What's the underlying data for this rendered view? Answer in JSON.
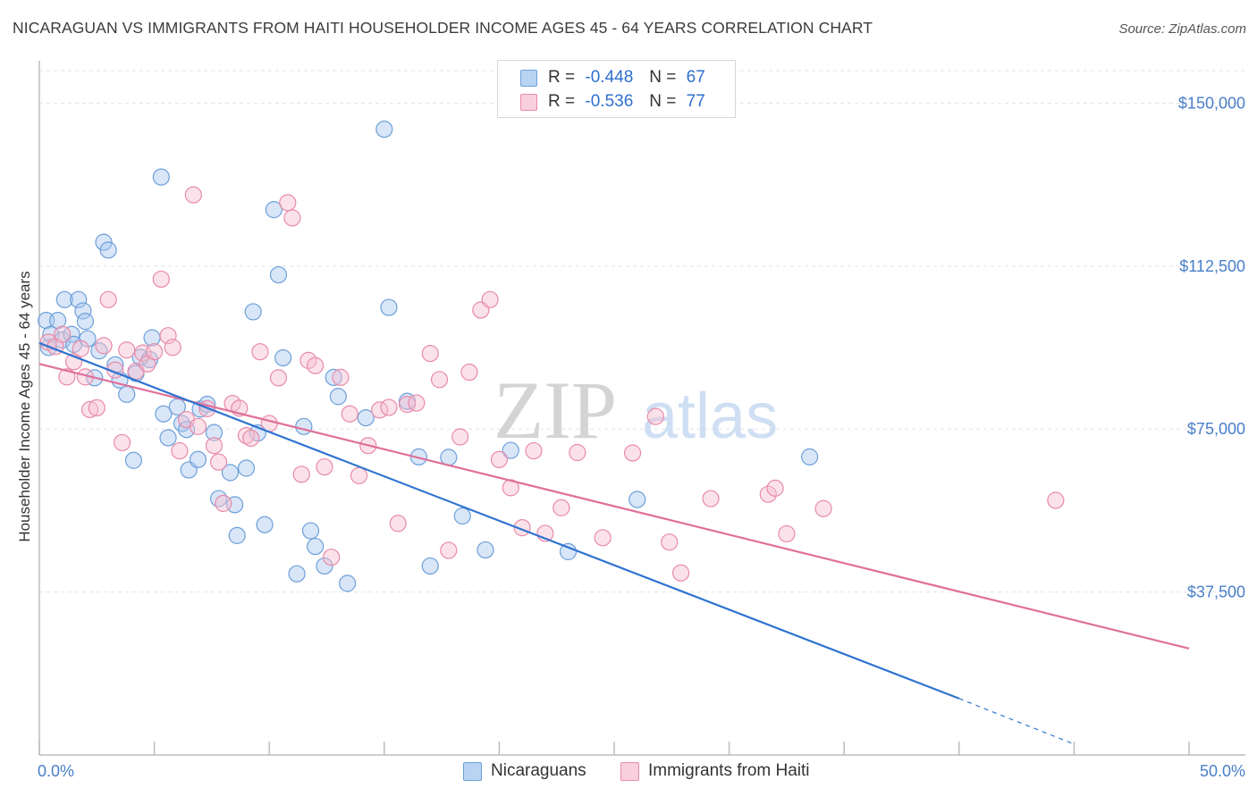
{
  "header": {
    "title": "NICARAGUAN VS IMMIGRANTS FROM HAITI HOUSEHOLDER INCOME AGES 45 - 64 YEARS CORRELATION CHART",
    "source": "Source: ZipAtlas.com"
  },
  "legend_box": {
    "rows": [
      {
        "r_label": "R =",
        "r_value": "-0.448",
        "n_label": "N =",
        "n_value": "67"
      },
      {
        "r_label": "R =",
        "r_value": "-0.536",
        "n_label": "N =",
        "n_value": "77"
      }
    ]
  },
  "watermark": {
    "part1": "ZIP",
    "part2": "atlas"
  },
  "colors": {
    "blue_fill": "#a8c8ef",
    "blue_stroke": "#6d9fd9",
    "blue_line": "#2f74d0",
    "pink_fill": "#f6bfd0",
    "pink_stroke": "#e88aa9",
    "pink_line": "#e0709a",
    "grid": "#e3e3e3",
    "tick_text": "#4a7fc9"
  },
  "chart_data": {
    "type": "scatter",
    "title": "NICARAGUAN VS IMMIGRANTS FROM HAITI HOUSEHOLDER INCOME AGES 45 - 64 YEARS CORRELATION CHART",
    "xlabel": "",
    "ylabel": "Householder Income Ages 45 - 64 years",
    "xlim": [
      0,
      50
    ],
    "ylim": [
      0,
      157500
    ],
    "x_tick_labels": [
      "0.0%",
      "50.0%"
    ],
    "y_ticks": [
      37500,
      75000,
      112500,
      150000
    ],
    "y_tick_labels": [
      "$37,500",
      "$75,000",
      "$112,500",
      "$150,000"
    ],
    "grid": true,
    "legend_position": "bottom",
    "series": [
      {
        "name": "Nicaraguans",
        "color": "#6d9fd9",
        "r": -0.448,
        "n": 67,
        "trend": {
          "x0": 0,
          "y0": 94800,
          "x1": 40,
          "y1": 13000,
          "dashed_to_x": 45,
          "dashed_to_y": 2500
        },
        "points": [
          [
            0.3,
            100000
          ],
          [
            0.5,
            96800
          ],
          [
            0.4,
            93800
          ],
          [
            0.8,
            100000
          ],
          [
            1.0,
            95500
          ],
          [
            1.1,
            104800
          ],
          [
            1.4,
            96800
          ],
          [
            1.5,
            94500
          ],
          [
            1.7,
            104800
          ],
          [
            1.9,
            102200
          ],
          [
            2.0,
            99800
          ],
          [
            2.1,
            95800
          ],
          [
            2.6,
            93000
          ],
          [
            2.4,
            86800
          ],
          [
            2.8,
            118000
          ],
          [
            3.0,
            116200
          ],
          [
            3.3,
            89800
          ],
          [
            3.5,
            86300
          ],
          [
            3.8,
            83000
          ],
          [
            4.1,
            67800
          ],
          [
            4.2,
            87800
          ],
          [
            4.4,
            91500
          ],
          [
            4.8,
            91000
          ],
          [
            4.9,
            96000
          ],
          [
            5.3,
            133000
          ],
          [
            5.4,
            78500
          ],
          [
            5.6,
            73000
          ],
          [
            6.0,
            80100
          ],
          [
            6.2,
            76300
          ],
          [
            6.4,
            74900
          ],
          [
            6.5,
            65600
          ],
          [
            6.9,
            68000
          ],
          [
            7.0,
            79600
          ],
          [
            7.3,
            80700
          ],
          [
            7.6,
            74200
          ],
          [
            7.8,
            59000
          ],
          [
            8.3,
            65000
          ],
          [
            8.5,
            57600
          ],
          [
            8.6,
            50500
          ],
          [
            9.0,
            66000
          ],
          [
            9.3,
            102000
          ],
          [
            9.5,
            74100
          ],
          [
            9.8,
            53000
          ],
          [
            10.2,
            125500
          ],
          [
            10.4,
            110500
          ],
          [
            10.6,
            91400
          ],
          [
            11.2,
            41700
          ],
          [
            11.5,
            75600
          ],
          [
            11.8,
            51600
          ],
          [
            12.0,
            48000
          ],
          [
            12.4,
            43500
          ],
          [
            12.8,
            86900
          ],
          [
            13.0,
            82500
          ],
          [
            13.4,
            39500
          ],
          [
            14.2,
            77600
          ],
          [
            15.0,
            144000
          ],
          [
            15.2,
            103000
          ],
          [
            16.0,
            81400
          ],
          [
            16.5,
            68600
          ],
          [
            17.0,
            43500
          ],
          [
            17.8,
            68500
          ],
          [
            18.4,
            55000
          ],
          [
            19.4,
            47200
          ],
          [
            20.5,
            70100
          ],
          [
            23.0,
            46800
          ],
          [
            26.0,
            58800
          ],
          [
            33.5,
            68600
          ]
        ]
      },
      {
        "name": "Immigrants from Haiti",
        "color": "#e88aa9",
        "r": -0.536,
        "n": 77,
        "trend": {
          "x0": 0,
          "y0": 90000,
          "x1": 50,
          "y1": 24500
        },
        "points": [
          [
            0.4,
            95000
          ],
          [
            0.7,
            94000
          ],
          [
            1.0,
            96800
          ],
          [
            1.2,
            87000
          ],
          [
            1.5,
            90500
          ],
          [
            1.8,
            93500
          ],
          [
            2.0,
            87000
          ],
          [
            2.2,
            79500
          ],
          [
            2.5,
            79900
          ],
          [
            2.8,
            94200
          ],
          [
            3.0,
            104800
          ],
          [
            3.3,
            88600
          ],
          [
            3.6,
            71900
          ],
          [
            3.8,
            93200
          ],
          [
            4.2,
            88300
          ],
          [
            4.5,
            92500
          ],
          [
            4.7,
            90000
          ],
          [
            5.0,
            92800
          ],
          [
            5.3,
            109500
          ],
          [
            5.6,
            96500
          ],
          [
            5.8,
            93800
          ],
          [
            6.1,
            70000
          ],
          [
            6.4,
            77200
          ],
          [
            6.7,
            128900
          ],
          [
            6.9,
            75600
          ],
          [
            7.3,
            79700
          ],
          [
            7.6,
            71200
          ],
          [
            7.8,
            67400
          ],
          [
            8.0,
            57900
          ],
          [
            8.4,
            80900
          ],
          [
            8.7,
            79800
          ],
          [
            9.0,
            73500
          ],
          [
            9.2,
            72900
          ],
          [
            9.6,
            92800
          ],
          [
            10.0,
            76300
          ],
          [
            10.4,
            86800
          ],
          [
            10.8,
            127100
          ],
          [
            11.0,
            123600
          ],
          [
            11.4,
            64600
          ],
          [
            11.7,
            90800
          ],
          [
            12.0,
            89600
          ],
          [
            12.4,
            66300
          ],
          [
            12.7,
            45500
          ],
          [
            13.1,
            86900
          ],
          [
            13.5,
            78500
          ],
          [
            13.9,
            64300
          ],
          [
            14.3,
            71200
          ],
          [
            14.8,
            79400
          ],
          [
            15.2,
            80000
          ],
          [
            15.6,
            53300
          ],
          [
            16.0,
            80700
          ],
          [
            16.4,
            81000
          ],
          [
            17.0,
            92400
          ],
          [
            17.4,
            86400
          ],
          [
            17.8,
            47100
          ],
          [
            18.3,
            73200
          ],
          [
            18.7,
            88100
          ],
          [
            19.2,
            102400
          ],
          [
            19.6,
            104800
          ],
          [
            20.0,
            68000
          ],
          [
            20.5,
            61500
          ],
          [
            21.0,
            52300
          ],
          [
            21.5,
            70000
          ],
          [
            22.0,
            51000
          ],
          [
            22.7,
            56900
          ],
          [
            23.4,
            69600
          ],
          [
            24.5,
            50000
          ],
          [
            25.8,
            69500
          ],
          [
            26.8,
            77900
          ],
          [
            27.4,
            49000
          ],
          [
            27.9,
            41900
          ],
          [
            29.2,
            59000
          ],
          [
            31.7,
            60000
          ],
          [
            32.0,
            61400
          ],
          [
            32.5,
            50900
          ],
          [
            34.1,
            56700
          ],
          [
            44.2,
            58600
          ]
        ]
      }
    ]
  },
  "bottom_legend": {
    "items": [
      "Nicaraguans",
      "Immigrants from Haiti"
    ]
  }
}
